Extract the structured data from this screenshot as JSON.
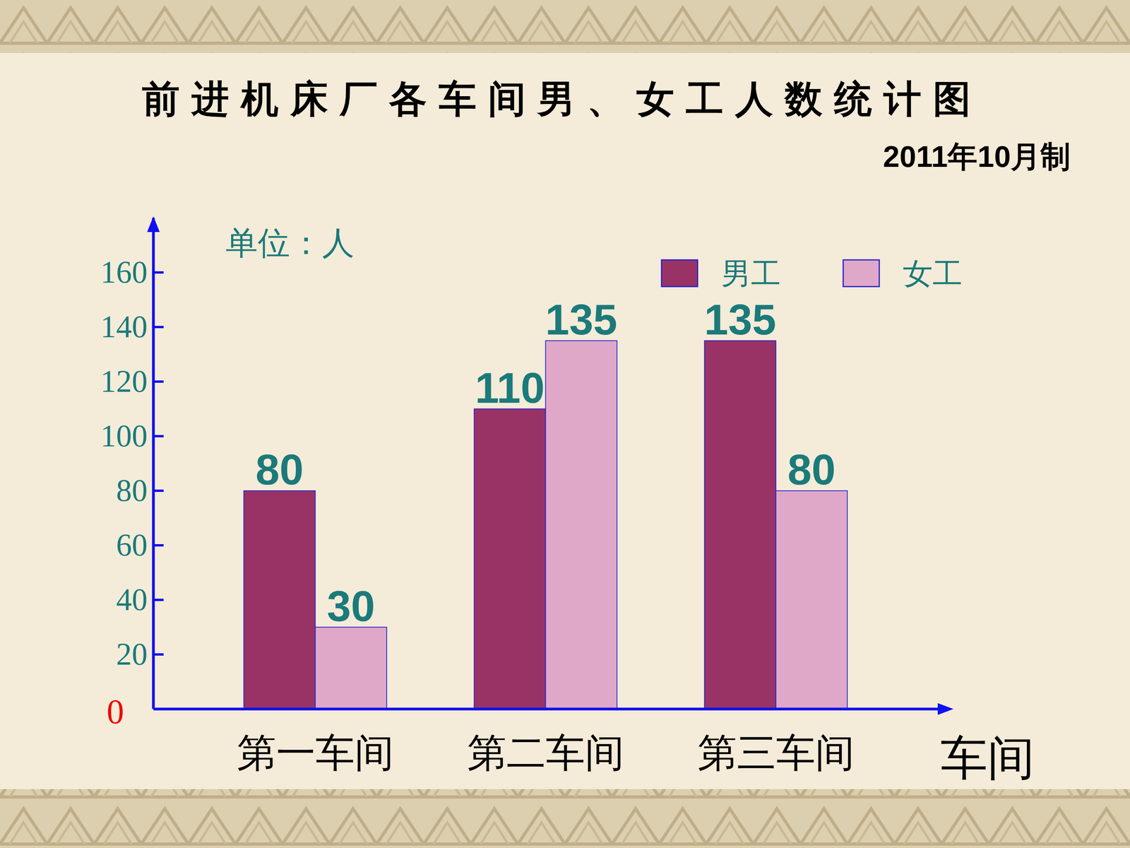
{
  "chart_data": {
    "type": "bar",
    "title": "前进机床厂各车间男、女工人数统计图",
    "subtitle": "2011年10月制",
    "y_label": "单位：人",
    "x_label": "车间",
    "categories": [
      "第一车间",
      "第二车间",
      "第三车间"
    ],
    "series": [
      {
        "name": "男工",
        "color": "#993366",
        "values": [
          80,
          110,
          135
        ]
      },
      {
        "name": "女工",
        "color": "#e0a8c8",
        "values": [
          30,
          135,
          80
        ]
      }
    ],
    "ylim": [
      0,
      180
    ],
    "yticks": [
      0,
      20,
      40,
      60,
      80,
      100,
      120,
      140,
      160
    ],
    "data_labels": true,
    "legend": "top-right",
    "grid": false
  }
}
